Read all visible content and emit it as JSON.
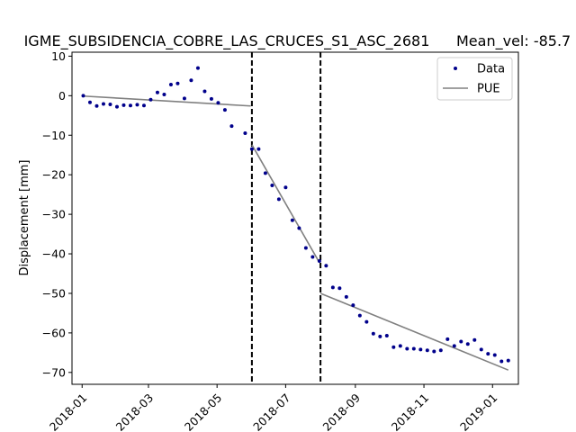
{
  "chart_data": {
    "type": "scatter",
    "title": "IGME_SUBSIDENCIA_COBRE_LAS_CRUCES_S1_ASC_2681",
    "title_right": "Mean_vel: -85.7",
    "xlabel": "",
    "ylabel": "Displacement [mm]",
    "xlim": [
      "2017-12-23",
      "2019-01-24"
    ],
    "ylim": [
      -73,
      11
    ],
    "x_ticks": [
      "2018-01-01",
      "2018-03-01",
      "2018-05-01",
      "2018-07-01",
      "2018-09-01",
      "2018-11-01",
      "2019-01-01"
    ],
    "x_tick_labels": [
      "2018-01",
      "2018-03",
      "2018-05",
      "2018-07",
      "2018-09",
      "2018-11",
      "2019-01"
    ],
    "y_ticks": [
      10,
      0,
      -10,
      -20,
      -30,
      -40,
      -50,
      -60,
      -70
    ],
    "y_tick_labels": [
      "10",
      "0",
      "−10",
      "−20",
      "−30",
      "−40",
      "−50",
      "−60",
      "−70"
    ],
    "legend": {
      "placement": "top-right",
      "entries": [
        "Data",
        "PUE"
      ]
    },
    "grid": false,
    "series": [
      {
        "name": "Data",
        "kind": "points",
        "color": "#00008b",
        "x": [
          "2018-01-02",
          "2018-01-08",
          "2018-01-14",
          "2018-01-20",
          "2018-01-26",
          "2018-02-01",
          "2018-02-07",
          "2018-02-13",
          "2018-02-19",
          "2018-02-25",
          "2018-03-03",
          "2018-03-09",
          "2018-03-15",
          "2018-03-21",
          "2018-03-27",
          "2018-04-02",
          "2018-04-08",
          "2018-04-14",
          "2018-04-20",
          "2018-04-26",
          "2018-05-02",
          "2018-05-08",
          "2018-05-14",
          "2018-05-26",
          "2018-06-01",
          "2018-06-07",
          "2018-06-13",
          "2018-06-19",
          "2018-06-25",
          "2018-07-01",
          "2018-07-07",
          "2018-07-13",
          "2018-07-19",
          "2018-07-25",
          "2018-07-31",
          "2018-08-06",
          "2018-08-12",
          "2018-08-18",
          "2018-08-24",
          "2018-08-30",
          "2018-09-05",
          "2018-09-11",
          "2018-09-17",
          "2018-09-23",
          "2018-09-29",
          "2018-10-05",
          "2018-10-11",
          "2018-10-17",
          "2018-10-23",
          "2018-10-29",
          "2018-11-04",
          "2018-11-10",
          "2018-11-16",
          "2018-11-22",
          "2018-11-28",
          "2018-12-04",
          "2018-12-10",
          "2018-12-16",
          "2018-12-22",
          "2018-12-28",
          "2019-01-03",
          "2019-01-09",
          "2019-01-15"
        ],
        "y": [
          0.0,
          -1.7,
          -2.6,
          -2.1,
          -2.2,
          -2.8,
          -2.4,
          -2.5,
          -2.3,
          -2.5,
          -1.0,
          0.8,
          0.3,
          2.8,
          3.1,
          -0.7,
          3.9,
          7.0,
          1.1,
          -0.8,
          -1.8,
          -3.6,
          -7.7,
          -9.5,
          -13.5,
          -13.5,
          -19.6,
          -22.7,
          -26.2,
          -23.2,
          -31.5,
          -33.5,
          -38.5,
          -40.8,
          -41.8,
          -43.0,
          -48.5,
          -48.7,
          -50.9,
          -53.0,
          -55.6,
          -57.2,
          -60.2,
          -60.9,
          -60.7,
          -63.6,
          -63.3,
          -64.0,
          -64.0,
          -64.2,
          -64.4,
          -64.7,
          -64.4,
          -61.6,
          -63.3,
          -62.2,
          -62.8,
          -61.8,
          -64.2,
          -65.3,
          -65.6,
          -67.2,
          -67.0
        ]
      },
      {
        "name": "PUE",
        "kind": "segments",
        "color": "#808080",
        "segments": [
          {
            "x": [
              "2018-01-02",
              "2018-05-31"
            ],
            "y": [
              -0.1,
              -2.6
            ]
          },
          {
            "x": [
              "2018-06-01",
              "2018-07-31"
            ],
            "y": [
              -12.4,
              -42.2
            ]
          },
          {
            "x": [
              "2018-08-01",
              "2019-01-15"
            ],
            "y": [
              -50.0,
              -69.4
            ]
          }
        ]
      },
      {
        "name": "",
        "kind": "vlines",
        "color": "#000000",
        "x": [
          "2018-06-01",
          "2018-08-01"
        ]
      }
    ]
  }
}
